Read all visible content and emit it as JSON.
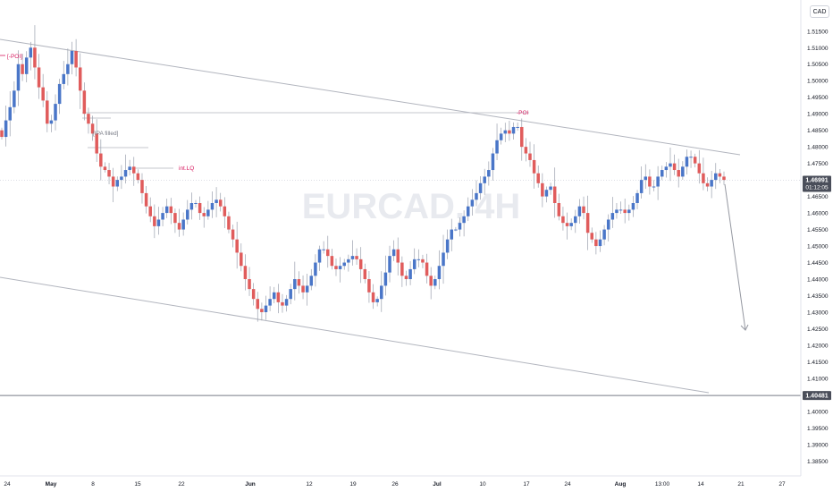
{
  "chart_data": {
    "type": "candlestick",
    "symbol": "EURCAD",
    "currency_label": "CAD",
    "price_axis": {
      "ylim": [
        1.3832,
        1.5217
      ],
      "ticks": [
        "1.51500",
        "1.51000",
        "1.50500",
        "1.50000",
        "1.49500",
        "1.49000",
        "1.48500",
        "1.48000",
        "1.47500",
        "1.47000",
        "1.46500",
        "1.46000",
        "1.45500",
        "1.45000",
        "1.44500",
        "1.44000",
        "1.43500",
        "1.43000",
        "1.42500",
        "1.42000",
        "1.41500",
        "1.41000",
        "1.40500",
        "1.40000",
        "1.39500",
        "1.39000",
        "1.38500"
      ]
    },
    "time_axis": {
      "labels": [
        {
          "text": "24",
          "bold": false
        },
        {
          "text": "May",
          "bold": true
        },
        {
          "text": "8",
          "bold": false
        },
        {
          "text": "15",
          "bold": false
        },
        {
          "text": "22",
          "bold": false
        },
        {
          "text": "Jun",
          "bold": true
        },
        {
          "text": "12",
          "bold": false
        },
        {
          "text": "19",
          "bold": false
        },
        {
          "text": "26",
          "bold": false
        },
        {
          "text": "Jul",
          "bold": true
        },
        {
          "text": "10",
          "bold": false
        },
        {
          "text": "17",
          "bold": false
        },
        {
          "text": "24",
          "bold": false
        },
        {
          "text": "Aug",
          "bold": true
        },
        {
          "text": "13:00",
          "bold": false
        },
        {
          "text": "14",
          "bold": false
        },
        {
          "text": "21",
          "bold": false
        },
        {
          "text": "27",
          "bold": false
        }
      ]
    },
    "current_price": {
      "value": 1.46991,
      "label": "1.46991",
      "countdown": "01:12:05"
    },
    "horizontal_level": {
      "value": 1.40481,
      "label": "1.40481"
    },
    "annotations": [
      {
        "text": "[-POI]",
        "color": "#d81b60"
      },
      {
        "text": "[IPA filled]",
        "color": "#787b86"
      },
      {
        "text": "int.LQ",
        "color": "#d81b60"
      },
      {
        "text": "-POI",
        "color": "#d81b60"
      }
    ],
    "watermark": "EURCAD, 4H",
    "series": {
      "closes": [
        1.483,
        1.488,
        1.492,
        1.497,
        1.505,
        1.502,
        1.507,
        1.51,
        1.504,
        1.498,
        1.494,
        1.487,
        1.488,
        1.493,
        1.499,
        1.502,
        1.505,
        1.509,
        1.504,
        1.497,
        1.49,
        1.487,
        1.484,
        1.478,
        1.474,
        1.473,
        1.471,
        1.468,
        1.47,
        1.471,
        1.473,
        1.474,
        1.472,
        1.47,
        1.466,
        1.462,
        1.459,
        1.456,
        1.458,
        1.46,
        1.462,
        1.46,
        1.457,
        1.455,
        1.458,
        1.461,
        1.463,
        1.463,
        1.46,
        1.459,
        1.461,
        1.463,
        1.464,
        1.462,
        1.459,
        1.455,
        1.452,
        1.448,
        1.444,
        1.44,
        1.437,
        1.434,
        1.431,
        1.43,
        1.432,
        1.434,
        1.436,
        1.433,
        1.432,
        1.434,
        1.437,
        1.44,
        1.438,
        1.436,
        1.438,
        1.441,
        1.445,
        1.449,
        1.449,
        1.447,
        1.444,
        1.443,
        1.444,
        1.445,
        1.446,
        1.447,
        1.446,
        1.443,
        1.44,
        1.436,
        1.433,
        1.434,
        1.438,
        1.442,
        1.447,
        1.449,
        1.445,
        1.441,
        1.44,
        1.443,
        1.446,
        1.446,
        1.445,
        1.441,
        1.438,
        1.44,
        1.444,
        1.448,
        1.452,
        1.455,
        1.455,
        1.457,
        1.459,
        1.462,
        1.464,
        1.466,
        1.469,
        1.471,
        1.473,
        1.478,
        1.482,
        1.484,
        1.485,
        1.484,
        1.486,
        1.486,
        1.48,
        1.478,
        1.476,
        1.472,
        1.469,
        1.465,
        1.467,
        1.468,
        1.463,
        1.459,
        1.457,
        1.456,
        1.457,
        1.459,
        1.462,
        1.46,
        1.454,
        1.452,
        1.45,
        1.452,
        1.455,
        1.458,
        1.46,
        1.461,
        1.461,
        1.46,
        1.461,
        1.463,
        1.466,
        1.47,
        1.471,
        1.468,
        1.468,
        1.471,
        1.473,
        1.474,
        1.475,
        1.473,
        1.471,
        1.474,
        1.477,
        1.477,
        1.475,
        1.472,
        1.469,
        1.468,
        1.47,
        1.472,
        1.471,
        1.47
      ],
      "bars_per_week": 7,
      "first_bar_date": "Apr 21"
    }
  }
}
